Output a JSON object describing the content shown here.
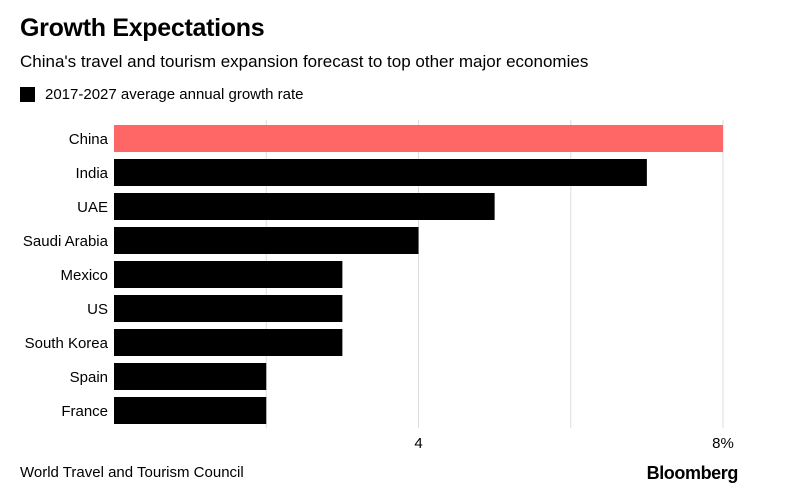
{
  "header": {
    "title": "Growth Expectations",
    "subtitle": "China's travel and tourism expansion forecast to top other major economies"
  },
  "legend": {
    "label": "2017-2027 average annual growth rate"
  },
  "footer": {
    "source": "World Travel and Tourism Council",
    "brand": "Bloomberg"
  },
  "colors": {
    "highlight": "#ff6666",
    "bar": "#000000",
    "grid": "#dddddd"
  },
  "chart_data": {
    "type": "bar",
    "orientation": "horizontal",
    "categories": [
      "China",
      "India",
      "UAE",
      "Saudi Arabia",
      "Mexico",
      "US",
      "South Korea",
      "Spain",
      "France"
    ],
    "values": [
      8.0,
      7.0,
      5.0,
      4.0,
      3.0,
      3.0,
      3.0,
      2.0,
      2.0
    ],
    "highlight": "China",
    "xlim": [
      0,
      8
    ],
    "x_gridlines": [
      2,
      4,
      6,
      8
    ],
    "x_tick_labels": [
      {
        "value": 4,
        "label": "4"
      },
      {
        "value": 8,
        "label": "8%"
      }
    ],
    "unit": "%",
    "legend_position": "top-left"
  }
}
